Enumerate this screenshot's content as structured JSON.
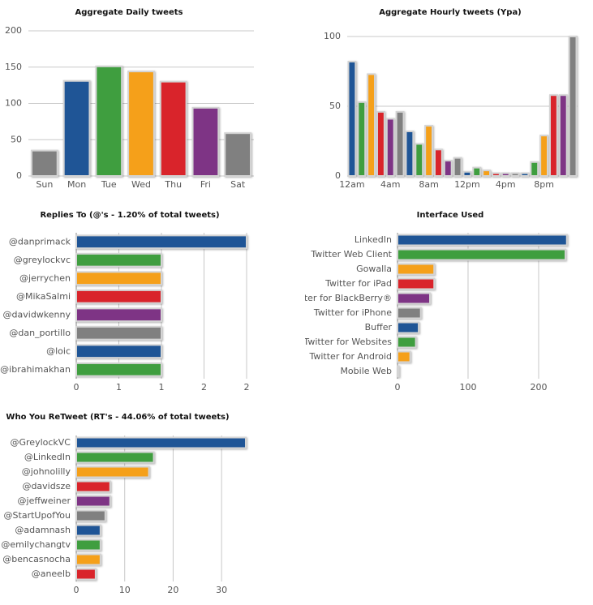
{
  "chart_data": [
    {
      "type": "bar",
      "orientation": "vertical",
      "title": "Aggregate Daily tweets",
      "categories": [
        "Sun",
        "Mon",
        "Tue",
        "Wed",
        "Thu",
        "Fri",
        "Sat"
      ],
      "values": [
        35,
        131,
        151,
        144,
        130,
        94,
        59
      ],
      "colors": [
        "#808080",
        "#1f5596",
        "#3f9e3f",
        "#f5a01a",
        "#d9242b",
        "#7e3485",
        "#808080"
      ],
      "ylim": [
        0,
        200
      ],
      "yticks": [
        0,
        50,
        100,
        150,
        200
      ],
      "grid": true
    },
    {
      "type": "bar",
      "orientation": "vertical",
      "title": "Aggregate Hourly tweets (Ypa)",
      "categories": [
        "12am",
        null,
        null,
        null,
        "4am",
        null,
        null,
        null,
        "8am",
        null,
        null,
        null,
        "12pm",
        null,
        null,
        null,
        "4pm",
        null,
        null,
        null,
        "8pm",
        null,
        null,
        null
      ],
      "values": [
        82,
        53,
        73,
        46,
        41,
        46,
        32,
        23,
        36,
        19,
        11,
        13,
        3,
        6,
        4,
        2,
        2,
        2,
        2,
        10,
        29,
        58,
        58,
        100
      ],
      "colors": [
        "#1f5596",
        "#3f9e3f",
        "#f5a01a",
        "#d9242b",
        "#7e3485",
        "#808080",
        "#1f5596",
        "#3f9e3f",
        "#f5a01a",
        "#d9242b",
        "#7e3485",
        "#808080",
        "#1f5596",
        "#3f9e3f",
        "#f5a01a",
        "#d9242b",
        "#7e3485",
        "#808080",
        "#1f5596",
        "#3f9e3f",
        "#f5a01a",
        "#d9242b",
        "#7e3485",
        "#808080"
      ],
      "ylim": [
        0,
        100
      ],
      "yticks": [
        0,
        50,
        100
      ],
      "grid": true
    },
    {
      "type": "bar",
      "orientation": "horizontal",
      "title": "Replies To (@'s - 1.20% of total tweets)",
      "categories": [
        "@danprimack",
        "@greylockvc",
        "@jerrychen",
        "@MikaSalmi",
        "@davidwkenny",
        "@dan_portillo",
        "@loic",
        "@ibrahimakhan"
      ],
      "values": [
        2,
        1,
        1,
        1,
        1,
        1,
        1,
        1
      ],
      "colors": [
        "#1f5596",
        "#3f9e3f",
        "#f5a01a",
        "#d9242b",
        "#7e3485",
        "#808080",
        "#1f5596",
        "#3f9e3f"
      ],
      "xlim": [
        0,
        2
      ],
      "xticks": [
        0,
        {
          "value": 0.5,
          "label": "1"
        },
        1,
        {
          "value": 1.5,
          "label": "2"
        },
        2
      ],
      "grid": true
    },
    {
      "type": "bar",
      "orientation": "horizontal",
      "title": "Interface Used",
      "categories": [
        "LinkedIn",
        "Twitter Web Client",
        "Gowalla",
        "Twitter for iPad",
        "Twitter for BlackBerry®",
        "Twitter for iPhone",
        "Buffer",
        "Twitter for Websites",
        "Twitter for Android",
        "Mobile Web"
      ],
      "values": [
        240,
        238,
        52,
        52,
        46,
        33,
        30,
        26,
        18,
        2
      ],
      "colors": [
        "#1f5596",
        "#3f9e3f",
        "#f5a01a",
        "#d9242b",
        "#7e3485",
        "#808080",
        "#1f5596",
        "#3f9e3f",
        "#f5a01a",
        "#d9242b"
      ],
      "xlim": [
        0,
        242
      ],
      "xticks": [
        0,
        100,
        200
      ],
      "grid": true
    },
    {
      "type": "bar",
      "orientation": "horizontal",
      "title": "Who You ReTweet (RT's - 44.06% of total tweets)",
      "categories": [
        "@GreylockVC",
        "@LinkedIn",
        "@johnolilly",
        "@davidsze",
        "@jeffweiner",
        "@StartUpofYou",
        "@adamnash",
        "@emilychangtv",
        "@bencasnocha",
        "@aneelb"
      ],
      "values": [
        35,
        16,
        15,
        7,
        7,
        6,
        5,
        5,
        5,
        4
      ],
      "colors": [
        "#1f5596",
        "#3f9e3f",
        "#f5a01a",
        "#d9242b",
        "#7e3485",
        "#808080",
        "#1f5596",
        "#3f9e3f",
        "#f5a01a",
        "#d9242b"
      ],
      "xlim": [
        0,
        35
      ],
      "xticks": [
        0,
        10,
        20,
        30
      ],
      "grid": true
    }
  ]
}
